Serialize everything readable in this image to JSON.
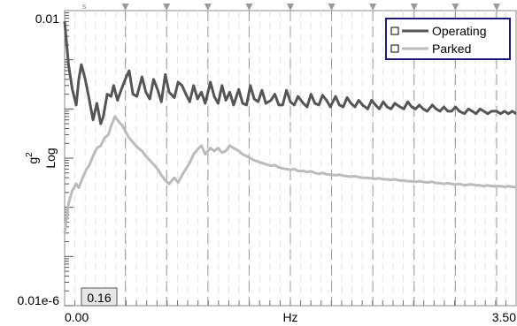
{
  "chart_data": {
    "type": "line",
    "x_axis": {
      "label": "Hz",
      "tick_labels": [
        "0.00",
        "3.50"
      ],
      "range": [
        0,
        3.5
      ],
      "scale": "linear"
    },
    "y_axis": {
      "label": "Log",
      "unit": "g",
      "unit_power": "2",
      "tick_labels": [
        "0.01",
        "0.01e-6"
      ],
      "scale": "log",
      "range": [
        1e-08,
        0.01
      ]
    },
    "cursor_readout": "0.16",
    "harmonic_markers": [
      "s"
    ],
    "grid": true,
    "legend": {
      "placement": "top-right",
      "entries": [
        {
          "name": "Operating",
          "color": "#555555"
        },
        {
          "name": "Parked",
          "color": "#bbbbbb"
        }
      ]
    },
    "series": [
      {
        "name": "Operating",
        "color": "#555555",
        "x": [
          0.0,
          0.03,
          0.06,
          0.09,
          0.11,
          0.13,
          0.16,
          0.19,
          0.22,
          0.25,
          0.28,
          0.3,
          0.33,
          0.36,
          0.38,
          0.41,
          0.44,
          0.47,
          0.5,
          0.53,
          0.56,
          0.6,
          0.63,
          0.66,
          0.69,
          0.72,
          0.75,
          0.78,
          0.81,
          0.85,
          0.88,
          0.91,
          0.94,
          0.97,
          1.0,
          1.03,
          1.06,
          1.09,
          1.13,
          1.16,
          1.19,
          1.22,
          1.25,
          1.28,
          1.31,
          1.35,
          1.38,
          1.41,
          1.44,
          1.47,
          1.5,
          1.53,
          1.56,
          1.6,
          1.63,
          1.66,
          1.69,
          1.72,
          1.75,
          1.78,
          1.81,
          1.85,
          1.88,
          1.91,
          1.94,
          1.97,
          2.0,
          2.03,
          2.06,
          2.1,
          2.13,
          2.16,
          2.19,
          2.22,
          2.25,
          2.28,
          2.31,
          2.35,
          2.38,
          2.41,
          2.44,
          2.47,
          2.5,
          2.53,
          2.56,
          2.6,
          2.63,
          2.66,
          2.69,
          2.72,
          2.75,
          2.78,
          2.81,
          2.85,
          2.88,
          2.91,
          2.94,
          2.97,
          3.0,
          3.03,
          3.06,
          3.1,
          3.13,
          3.16,
          3.19,
          3.22,
          3.25,
          3.28,
          3.31,
          3.35,
          3.38,
          3.41,
          3.44,
          3.47,
          3.5
        ],
        "y": [
          0.006,
          0.0008,
          0.00025,
          0.00012,
          0.0004,
          0.0008,
          0.0004,
          0.00016,
          6e-05,
          0.00013,
          5e-05,
          7e-05,
          0.0002,
          0.00018,
          0.0003,
          0.00015,
          0.00025,
          0.0004,
          0.0006,
          0.0002,
          0.00018,
          0.00045,
          0.00022,
          0.00016,
          0.0004,
          0.00025,
          0.00014,
          0.0005,
          0.00022,
          0.00017,
          0.00035,
          0.0003,
          0.0002,
          0.00014,
          0.0003,
          0.00016,
          0.00022,
          0.00013,
          0.00035,
          0.00018,
          0.00013,
          0.0003,
          0.00015,
          0.00022,
          0.00012,
          0.00025,
          0.00013,
          0.00012,
          0.0003,
          0.00016,
          0.00014,
          0.00024,
          0.00013,
          0.00015,
          0.0002,
          0.00012,
          0.00012,
          0.00024,
          0.00014,
          0.00012,
          0.00018,
          0.00013,
          0.00011,
          0.0002,
          0.00013,
          0.00012,
          0.00019,
          0.00015,
          0.00011,
          0.00018,
          0.00012,
          0.00011,
          0.00017,
          0.00013,
          0.00011,
          0.00015,
          0.00012,
          0.0001,
          0.00015,
          0.00012,
          0.0001,
          0.00014,
          0.00011,
          0.0001,
          0.00013,
          0.00011,
          0.0001,
          0.00014,
          0.00011,
          0.0001,
          0.00012,
          0.0001,
          9e-05,
          0.00012,
          0.0001,
          9e-05,
          0.00011,
          9e-05,
          9e-05,
          0.00011,
          9e-05,
          8e-05,
          0.0001,
          9e-05,
          8e-05,
          0.0001,
          9e-05,
          8e-05,
          9e-05,
          9e-05,
          8e-05,
          9e-05,
          8e-05,
          9e-05,
          8e-05
        ]
      },
      {
        "name": "Parked",
        "color": "#bbbbbb",
        "x": [
          0.0,
          0.03,
          0.06,
          0.09,
          0.11,
          0.14,
          0.17,
          0.19,
          0.22,
          0.25,
          0.28,
          0.31,
          0.34,
          0.36,
          0.39,
          0.42,
          0.45,
          0.47,
          0.5,
          0.53,
          0.56,
          0.6,
          0.63,
          0.66,
          0.69,
          0.72,
          0.75,
          0.78,
          0.81,
          0.85,
          0.88,
          0.91,
          0.94,
          0.97,
          1.0,
          1.03,
          1.06,
          1.09,
          1.13,
          1.16,
          1.19,
          1.22,
          1.25,
          1.28,
          1.31,
          1.35,
          1.38,
          1.41,
          1.44,
          1.47,
          1.5,
          1.53,
          1.56,
          1.6,
          1.63,
          1.66,
          1.69,
          1.72,
          1.75,
          1.78,
          1.81,
          1.85,
          1.88,
          1.91,
          1.94,
          1.97,
          2.0,
          2.03,
          2.06,
          2.1,
          2.13,
          2.16,
          2.19,
          2.22,
          2.25,
          2.28,
          2.31,
          2.35,
          2.38,
          2.41,
          2.44,
          2.47,
          2.5,
          2.53,
          2.56,
          2.6,
          2.63,
          2.66,
          2.69,
          2.72,
          2.75,
          2.78,
          2.81,
          2.85,
          2.88,
          2.91,
          2.94,
          2.97,
          3.0,
          3.03,
          3.06,
          3.1,
          3.13,
          3.16,
          3.19,
          3.22,
          3.25,
          3.28,
          3.31,
          3.35,
          3.38,
          3.41,
          3.44,
          3.47,
          3.5
        ],
        "y": [
          3e-07,
          1.2e-06,
          2.2e-06,
          3e-06,
          2.5e-06,
          4e-06,
          6e-06,
          7e-06,
          1.1e-05,
          1.6e-05,
          1.8e-05,
          2.6e-05,
          3e-05,
          4.5e-05,
          7e-05,
          5.5e-05,
          4.5e-05,
          3.5e-05,
          2.6e-05,
          2.1e-05,
          1.7e-05,
          1.4e-05,
          1.1e-05,
          9e-06,
          7.5e-06,
          6e-06,
          4.5e-06,
          3.5e-06,
          3e-06,
          4e-06,
          3.2e-06,
          4.5e-06,
          6e-06,
          8e-06,
          1.2e-05,
          1.5e-05,
          1.8e-05,
          1.2e-05,
          1.6e-05,
          1.4e-05,
          1.6e-05,
          1.3e-05,
          1.4e-05,
          1.8e-05,
          1.6e-05,
          1.4e-05,
          1.2e-05,
          1.1e-05,
          1e-05,
          9e-06,
          8.5e-06,
          8e-06,
          7.5e-06,
          7e-06,
          7.2e-06,
          6.5e-06,
          6.2e-06,
          6e-06,
          5.8e-06,
          6e-06,
          5.5e-06,
          5.5e-06,
          5.2e-06,
          5.4e-06,
          5e-06,
          4.8e-06,
          5e-06,
          4.7e-06,
          4.6e-06,
          4.5e-06,
          4.6e-06,
          4.4e-06,
          4.3e-06,
          4.2e-06,
          4.3e-06,
          4.1e-06,
          4e-06,
          4e-06,
          3.9e-06,
          3.8e-06,
          3.9e-06,
          3.7e-06,
          3.7e-06,
          3.6e-06,
          3.7e-06,
          3.5e-06,
          3.5e-06,
          3.4e-06,
          3.4e-06,
          3.3e-06,
          3.4e-06,
          3.3e-06,
          3.2e-06,
          3.3e-06,
          3.1e-06,
          3.1e-06,
          3e-06,
          3.1e-06,
          3e-06,
          2.9e-06,
          3e-06,
          2.8e-06,
          2.9e-06,
          2.9e-06,
          2.8e-06,
          2.8e-06,
          2.7e-06,
          2.8e-06,
          2.7e-06,
          2.7e-06,
          2.7e-06,
          2.6e-06,
          2.7e-06,
          2.6e-06,
          2.6e-06
        ]
      }
    ]
  }
}
